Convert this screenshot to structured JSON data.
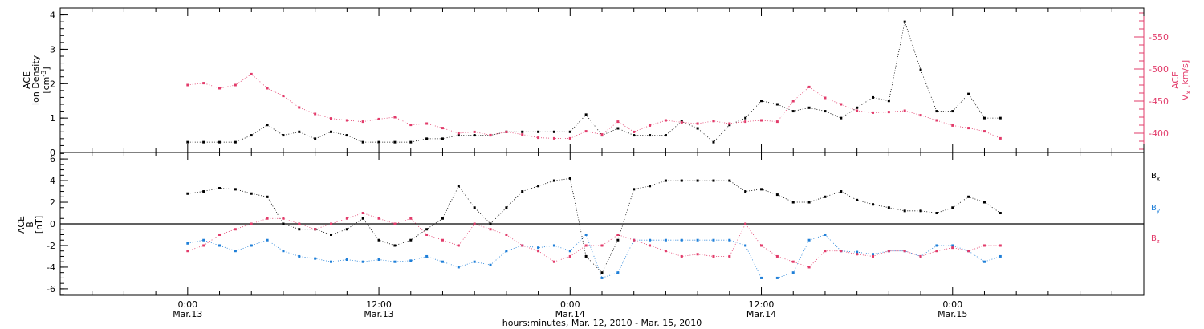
{
  "chart_data": [
    {
      "type": "scatter",
      "panel": "top",
      "left_axis": {
        "label_lines": [
          "ACE",
          "Ion Density"
        ],
        "unit": "[cm",
        "unit_sup": "-3",
        "unit_close": "]",
        "ylim": [
          0,
          4.2
        ],
        "ticks": [
          "0",
          "1",
          "2",
          "3",
          "4"
        ],
        "tick_values": [
          0,
          1,
          2,
          3,
          4
        ]
      },
      "right_axis": {
        "label_line1": "ACE",
        "label_main": "V",
        "label_sub": "x",
        "unit": "[km/s]",
        "ylim": [
          -370,
          -595
        ],
        "ticks": [
          "-400",
          "-450",
          "-500",
          "-550"
        ],
        "tick_values": [
          -400,
          -450,
          -500,
          -550
        ],
        "color": "#e23b6a"
      },
      "series": [
        {
          "color": "#000000",
          "axis": "left",
          "x_hours": [
            0,
            1,
            2,
            3,
            4,
            5,
            6,
            7,
            8,
            9,
            10,
            11,
            12,
            13,
            14,
            15,
            16,
            17,
            18,
            19,
            20,
            21,
            22,
            23,
            24,
            25,
            26,
            27,
            28,
            29,
            30,
            31,
            32,
            33,
            34,
            35,
            36,
            37,
            38,
            39,
            40,
            41,
            42,
            43,
            44,
            45,
            46,
            47,
            48,
            49,
            50,
            51
          ],
          "values": [
            0.3,
            0.3,
            0.3,
            0.3,
            0.5,
            0.8,
            0.5,
            0.6,
            0.4,
            0.6,
            0.5,
            0.3,
            0.3,
            0.3,
            0.3,
            0.4,
            0.4,
            0.5,
            0.5,
            0.5,
            0.6,
            0.6,
            0.6,
            0.6,
            0.6,
            1.1,
            0.5,
            0.7,
            0.5,
            0.5,
            0.5,
            0.9,
            0.7,
            0.3,
            0.8,
            1.0,
            1.5,
            1.4,
            1.2,
            1.3,
            1.2,
            1.0,
            1.3,
            1.6,
            1.5,
            3.8,
            2.4,
            1.2,
            1.2,
            1.7,
            1.0,
            1.0
          ]
        },
        {
          "color": "#e23b6a",
          "axis": "right",
          "x_hours": [
            0,
            1,
            2,
            3,
            4,
            5,
            6,
            7,
            8,
            9,
            10,
            11,
            12,
            13,
            14,
            15,
            16,
            17,
            18,
            19,
            20,
            21,
            22,
            23,
            24,
            25,
            26,
            27,
            28,
            29,
            30,
            31,
            32,
            33,
            34,
            35,
            36,
            37,
            38,
            39,
            40,
            41,
            42,
            43,
            44,
            45,
            46,
            47,
            48,
            49,
            50,
            51
          ],
          "values": [
            -475,
            -478,
            -470,
            -475,
            -492,
            -470,
            -458,
            -440,
            -430,
            -423,
            -420,
            -418,
            -422,
            -425,
            -413,
            -415,
            -408,
            -400,
            -402,
            -397,
            -402,
            -398,
            -393,
            -392,
            -392,
            -403,
            -398,
            -418,
            -402,
            -412,
            -420,
            -417,
            -415,
            -419,
            -415,
            -418,
            -420,
            -418,
            -450,
            -472,
            -455,
            -445,
            -435,
            -432,
            -433,
            -435,
            -428,
            -420,
            -412,
            -408,
            -403,
            -392
          ]
        }
      ]
    },
    {
      "type": "scatter",
      "panel": "bottom",
      "axis": {
        "label_line1": "ACE",
        "label_main": "B",
        "unit": "[nT]",
        "ylim": [
          -6.6,
          6.6
        ],
        "ticks": [
          "6",
          "4",
          "2",
          "0",
          "-2",
          "-4",
          "-6"
        ],
        "tick_values": [
          6,
          4,
          2,
          0,
          -2,
          -4,
          -6
        ]
      },
      "zero_line": true,
      "legend_position": "right",
      "series": [
        {
          "name": "B",
          "name_sub": "x",
          "color": "#000000",
          "x_hours": [
            0,
            1,
            2,
            3,
            4,
            5,
            6,
            7,
            8,
            9,
            10,
            11,
            12,
            13,
            14,
            15,
            16,
            17,
            18,
            19,
            20,
            21,
            22,
            23,
            24,
            25,
            26,
            27,
            28,
            29,
            30,
            31,
            32,
            33,
            34,
            35,
            36,
            37,
            38,
            39,
            40,
            41,
            42,
            43,
            44,
            45,
            46,
            47,
            48,
            49,
            50,
            51
          ],
          "values": [
            2.8,
            3.0,
            3.3,
            3.2,
            2.8,
            2.5,
            0.0,
            -0.5,
            -0.5,
            -1.0,
            -0.5,
            0.5,
            -1.5,
            -2.0,
            -1.5,
            -0.5,
            0.5,
            3.5,
            1.5,
            0.0,
            1.5,
            3.0,
            3.5,
            4.0,
            4.2,
            -3.0,
            -4.5,
            -1.5,
            3.2,
            3.5,
            4.0,
            4.0,
            4.0,
            4.0,
            4.0,
            3.0,
            3.2,
            2.7,
            2.0,
            2.0,
            2.5,
            3.0,
            2.2,
            1.8,
            1.5,
            1.2,
            1.2,
            1.0,
            1.5,
            2.5,
            2.0,
            1.0
          ]
        },
        {
          "name": "B",
          "name_sub": "y",
          "color": "#1f7fd8",
          "x_hours": [
            0,
            1,
            2,
            3,
            4,
            5,
            6,
            7,
            8,
            9,
            10,
            11,
            12,
            13,
            14,
            15,
            16,
            17,
            18,
            19,
            20,
            21,
            22,
            23,
            24,
            25,
            26,
            27,
            28,
            29,
            30,
            31,
            32,
            33,
            34,
            35,
            36,
            37,
            38,
            39,
            40,
            41,
            42,
            43,
            44,
            45,
            46,
            47,
            48,
            49,
            50,
            51
          ],
          "values": [
            -1.8,
            -1.5,
            -2.0,
            -2.5,
            -2.0,
            -1.5,
            -2.5,
            -3.0,
            -3.2,
            -3.5,
            -3.3,
            -3.5,
            -3.3,
            -3.5,
            -3.4,
            -3.0,
            -3.5,
            -4.0,
            -3.5,
            -3.8,
            -2.5,
            -2.0,
            -2.2,
            -2.0,
            -2.5,
            -1.0,
            -5.0,
            -4.5,
            -1.5,
            -1.5,
            -1.5,
            -1.5,
            -1.5,
            -1.5,
            -1.5,
            -2.0,
            -5.0,
            -5.0,
            -4.5,
            -1.5,
            -1.0,
            -2.5,
            -2.6,
            -2.8,
            -2.5,
            -2.5,
            -3.0,
            -2.0,
            -2.0,
            -2.5,
            -3.5,
            -3.0
          ]
        },
        {
          "name": "B",
          "name_sub": "z",
          "color": "#e23b6a",
          "x_hours": [
            0,
            1,
            2,
            3,
            4,
            5,
            6,
            7,
            8,
            9,
            10,
            11,
            12,
            13,
            14,
            15,
            16,
            17,
            18,
            19,
            20,
            21,
            22,
            23,
            24,
            25,
            26,
            27,
            28,
            29,
            30,
            31,
            32,
            33,
            34,
            35,
            36,
            37,
            38,
            39,
            40,
            41,
            42,
            43,
            44,
            45,
            46,
            47,
            48,
            49,
            50,
            51
          ],
          "values": [
            -2.5,
            -2.0,
            -1.0,
            -0.5,
            0.0,
            0.5,
            0.5,
            0.0,
            -0.5,
            0.0,
            0.5,
            1.0,
            0.5,
            0.0,
            0.5,
            -1.0,
            -1.5,
            -2.0,
            0.0,
            -0.5,
            -1.0,
            -2.0,
            -2.5,
            -3.5,
            -3.0,
            -2.0,
            -2.0,
            -1.0,
            -1.5,
            -2.0,
            -2.5,
            -3.0,
            -2.8,
            -3.0,
            -3.0,
            0.0,
            -2.0,
            -3.0,
            -3.5,
            -4.0,
            -2.5,
            -2.5,
            -2.8,
            -3.0,
            -2.5,
            -2.5,
            -3.0,
            -2.5,
            -2.2,
            -2.5,
            -2.0,
            -2.0
          ]
        }
      ]
    }
  ],
  "x_axis": {
    "tick_labels": [
      {
        "time": "0:00",
        "date": "Mar.13",
        "hours": 0
      },
      {
        "time": "12:00",
        "date": "Mar.13",
        "hours": 12
      },
      {
        "time": "0:00",
        "date": "Mar.14",
        "hours": 24
      },
      {
        "time": "12:00",
        "date": "Mar.14",
        "hours": 36
      },
      {
        "time": "0:00",
        "date": "Mar.15",
        "hours": 48
      }
    ],
    "title": "hours:minutes, Mar. 12, 2010 - Mar. 15, 2010"
  }
}
